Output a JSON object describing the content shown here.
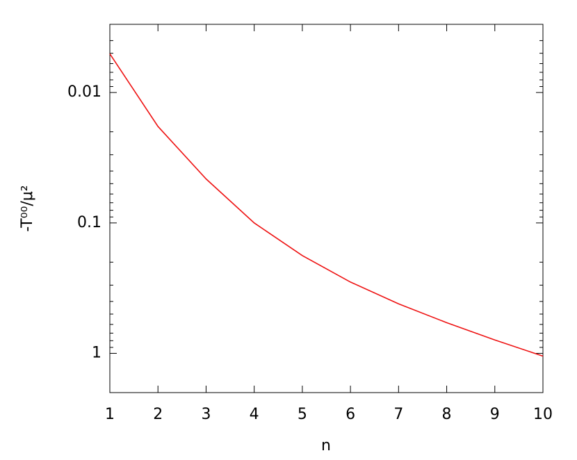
{
  "chart_data": {
    "type": "line",
    "xlabel": "n",
    "ylabel": "-T⁰⁰/μ²",
    "x": [
      1,
      2,
      3,
      4,
      5,
      6,
      7,
      8,
      9,
      10
    ],
    "series": [
      {
        "color": "#ee1111",
        "values": [
          0.00505,
          0.0182,
          0.046,
          0.1,
          0.178,
          0.284,
          0.417,
          0.582,
          0.79,
          1.05
        ]
      }
    ],
    "xlim": [
      1,
      10
    ],
    "xticks": [
      1,
      2,
      3,
      4,
      5,
      6,
      7,
      8,
      9,
      10
    ],
    "ylim": [
      0.003,
      2
    ],
    "yscale": "log",
    "y_inverted": true,
    "yticks": [
      0.01,
      0.1,
      1
    ],
    "yminor_ticks": [
      0.003,
      0.004,
      0.005,
      0.006,
      0.007,
      0.008,
      0.009,
      0.02,
      0.03,
      0.04,
      0.05,
      0.06,
      0.07,
      0.08,
      0.09,
      0.2,
      0.3,
      0.4,
      0.5,
      0.6,
      0.7,
      0.8,
      0.9,
      2
    ],
    "grid": false
  }
}
